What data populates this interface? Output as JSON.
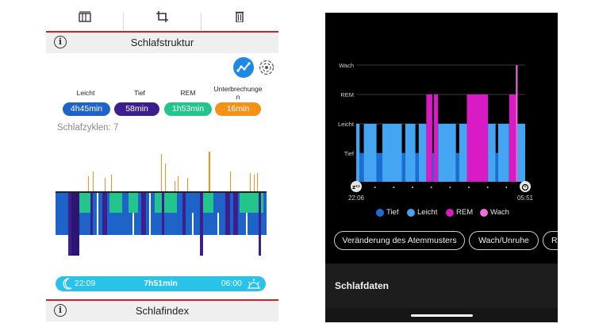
{
  "left_panel": {
    "toolbar": {
      "icons": [
        "chart-bars-icon",
        "crop-icon",
        "trash-icon"
      ]
    },
    "header": {
      "title": "Schlafstruktur",
      "info_icon": "info-icon"
    },
    "view_toggle": {
      "active": "trend-line-icon",
      "inactive": "radar-icon",
      "accent": "#1e88e5"
    },
    "stats": [
      {
        "label": "Leicht",
        "value": "4h45min",
        "color": "#1e63c8"
      },
      {
        "label": "Tief",
        "value": "58min",
        "color": "#3c1f8c"
      },
      {
        "label": "REM",
        "value": "1h53min",
        "color": "#22c58b"
      },
      {
        "label": "Unterbrechunge\nn",
        "value": "16min",
        "color": "#f39118"
      }
    ],
    "cycles_text": "Schlafzyklen: 7",
    "summary": {
      "start": "22:09",
      "duration": "7h51min",
      "end": "06:00",
      "color": "#29c3ea"
    },
    "footer_section": {
      "title": "Schlafindex",
      "info_icon": "info-icon"
    }
  },
  "right_panel": {
    "chart_data": {
      "type": "bar",
      "title": "",
      "ylabel": "",
      "categories": [
        "Tief",
        "Leicht",
        "REM",
        "Wach"
      ],
      "y_levels": [
        "Wach",
        "REM",
        "Leicht",
        "Tief"
      ],
      "x_start": "22:06",
      "x_end": "05:51",
      "segments": [
        {
          "stage": "Leicht",
          "start": 0.0,
          "end": 0.02
        },
        {
          "stage": "Tief",
          "start": 0.02,
          "end": 0.045
        },
        {
          "stage": "Leicht",
          "start": 0.045,
          "end": 0.12
        },
        {
          "stage": "Tief",
          "start": 0.12,
          "end": 0.155
        },
        {
          "stage": "Leicht",
          "start": 0.155,
          "end": 0.27
        },
        {
          "stage": "Tief",
          "start": 0.27,
          "end": 0.29
        },
        {
          "stage": "Leicht",
          "start": 0.29,
          "end": 0.35
        },
        {
          "stage": "Tief",
          "start": 0.35,
          "end": 0.37
        },
        {
          "stage": "Leicht",
          "start": 0.37,
          "end": 0.415
        },
        {
          "stage": "REM",
          "start": 0.415,
          "end": 0.45
        },
        {
          "stage": "Tief",
          "start": 0.45,
          "end": 0.46
        },
        {
          "stage": "REM",
          "start": 0.46,
          "end": 0.485
        },
        {
          "stage": "Leicht",
          "start": 0.485,
          "end": 0.59
        },
        {
          "stage": "Tief",
          "start": 0.59,
          "end": 0.61
        },
        {
          "stage": "Leicht",
          "start": 0.61,
          "end": 0.655
        },
        {
          "stage": "REM",
          "start": 0.655,
          "end": 0.78
        },
        {
          "stage": "Leicht",
          "start": 0.78,
          "end": 0.825
        },
        {
          "stage": "Tief",
          "start": 0.825,
          "end": 0.84
        },
        {
          "stage": "Leicht",
          "start": 0.84,
          "end": 0.905
        },
        {
          "stage": "REM",
          "start": 0.905,
          "end": 0.945
        },
        {
          "stage": "Wach",
          "start": 0.945,
          "end": 0.955
        },
        {
          "stage": "Leicht",
          "start": 0.955,
          "end": 1.0
        }
      ],
      "colors": {
        "Tief": "#1a6fd6",
        "Leicht": "#44a6f2",
        "REM": "#d81bc5",
        "Wach": "#f06fd8"
      },
      "grid": true,
      "legend_position": "bottom"
    },
    "chips": [
      "Veränderung des Atemmusters",
      "Wach/Unruhe",
      "R"
    ],
    "card_title": "Schlafdaten",
    "icons": {
      "start": "zzz-icon",
      "end": "alarm-clock-icon"
    }
  }
}
